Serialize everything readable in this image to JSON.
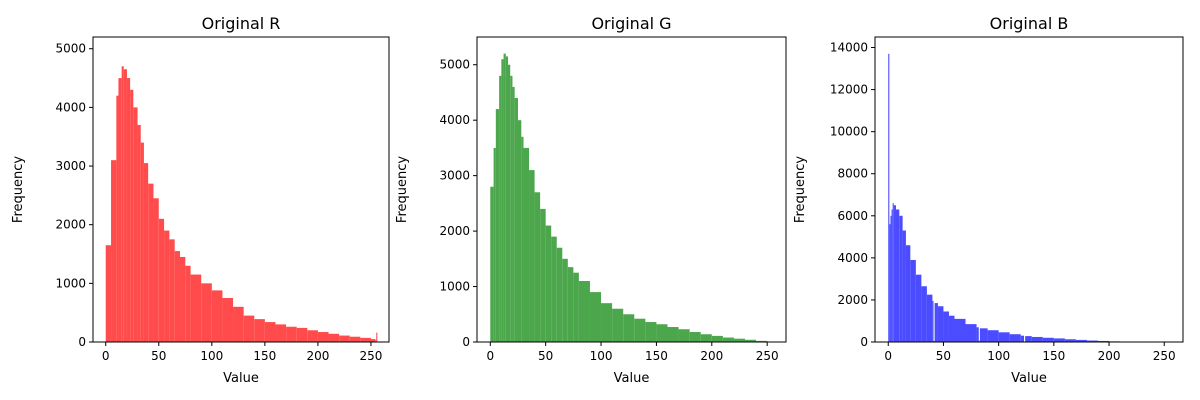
{
  "chart_data": [
    {
      "type": "bar",
      "title": "Original R",
      "xlabel": "Value",
      "ylabel": "Frequency",
      "color": "#ff4b4b",
      "xlim": [
        -12,
        267
      ],
      "ylim": [
        0,
        5200
      ],
      "xticks": [
        0,
        50,
        100,
        150,
        200,
        250
      ],
      "yticks": [
        0,
        1000,
        2000,
        3000,
        4000,
        5000
      ],
      "x": [
        0,
        5,
        10,
        12,
        15,
        17,
        20,
        23,
        26,
        30,
        33,
        36,
        40,
        45,
        50,
        55,
        60,
        65,
        70,
        75,
        80,
        90,
        100,
        110,
        120,
        130,
        140,
        150,
        160,
        170,
        180,
        190,
        200,
        210,
        220,
        230,
        240,
        250,
        254,
        255
      ],
      "values": [
        1650,
        3100,
        4200,
        4500,
        4700,
        4650,
        4500,
        4300,
        4000,
        3700,
        3400,
        3050,
        2700,
        2450,
        2100,
        1900,
        1750,
        1550,
        1450,
        1300,
        1150,
        1000,
        880,
        750,
        600,
        450,
        390,
        340,
        300,
        260,
        240,
        200,
        170,
        140,
        110,
        90,
        70,
        50,
        40,
        160
      ],
      "grid": false
    },
    {
      "type": "bar",
      "title": "Original G",
      "xlabel": "Value",
      "ylabel": "Frequency",
      "color": "#4ca64c",
      "xlim": [
        -12,
        267
      ],
      "ylim": [
        0,
        5500
      ],
      "xticks": [
        0,
        50,
        100,
        150,
        200,
        250
      ],
      "yticks": [
        0,
        1000,
        2000,
        3000,
        4000,
        5000
      ],
      "x": [
        0,
        3,
        5,
        8,
        10,
        12,
        14,
        16,
        18,
        20,
        22,
        25,
        28,
        30,
        35,
        40,
        45,
        50,
        55,
        60,
        65,
        70,
        75,
        80,
        90,
        100,
        110,
        120,
        130,
        140,
        150,
        160,
        170,
        180,
        190,
        200,
        210,
        220,
        230,
        240,
        250,
        254
      ],
      "values": [
        2800,
        3500,
        4200,
        4800,
        5100,
        5200,
        5150,
        5000,
        4800,
        4600,
        4400,
        4000,
        3700,
        3500,
        3100,
        2700,
        2400,
        2100,
        1900,
        1700,
        1500,
        1350,
        1250,
        1100,
        900,
        700,
        600,
        500,
        420,
        360,
        320,
        270,
        230,
        180,
        140,
        110,
        80,
        60,
        40,
        20,
        8,
        3
      ],
      "grid": false
    },
    {
      "type": "bar",
      "title": "Original B",
      "xlabel": "Value",
      "ylabel": "Frequency",
      "color": "#4b4bff",
      "xlim": [
        -12,
        267
      ],
      "ylim": [
        0,
        14500
      ],
      "xticks": [
        0,
        50,
        100,
        150,
        200,
        250
      ],
      "yticks": [
        0,
        2000,
        4000,
        6000,
        8000,
        10000,
        12000,
        14000
      ],
      "x": [
        0,
        1,
        2,
        3,
        4,
        5,
        7,
        10,
        13,
        16,
        20,
        25,
        30,
        35,
        40,
        41,
        42,
        45,
        50,
        55,
        60,
        70,
        80,
        82,
        83,
        90,
        100,
        110,
        120,
        123,
        124,
        130,
        140,
        150,
        160,
        170,
        180,
        190,
        200,
        210,
        220,
        230,
        240,
        250
      ],
      "values": [
        13700,
        5600,
        6000,
        6300,
        6600,
        6500,
        6300,
        6000,
        5300,
        4600,
        3900,
        3200,
        2650,
        2250,
        1950,
        50,
        1850,
        1700,
        1450,
        1250,
        1100,
        850,
        700,
        60,
        650,
        560,
        460,
        370,
        300,
        20,
        280,
        240,
        200,
        170,
        130,
        100,
        70,
        50,
        30,
        15,
        8,
        4,
        2,
        1
      ],
      "grid": false
    }
  ]
}
